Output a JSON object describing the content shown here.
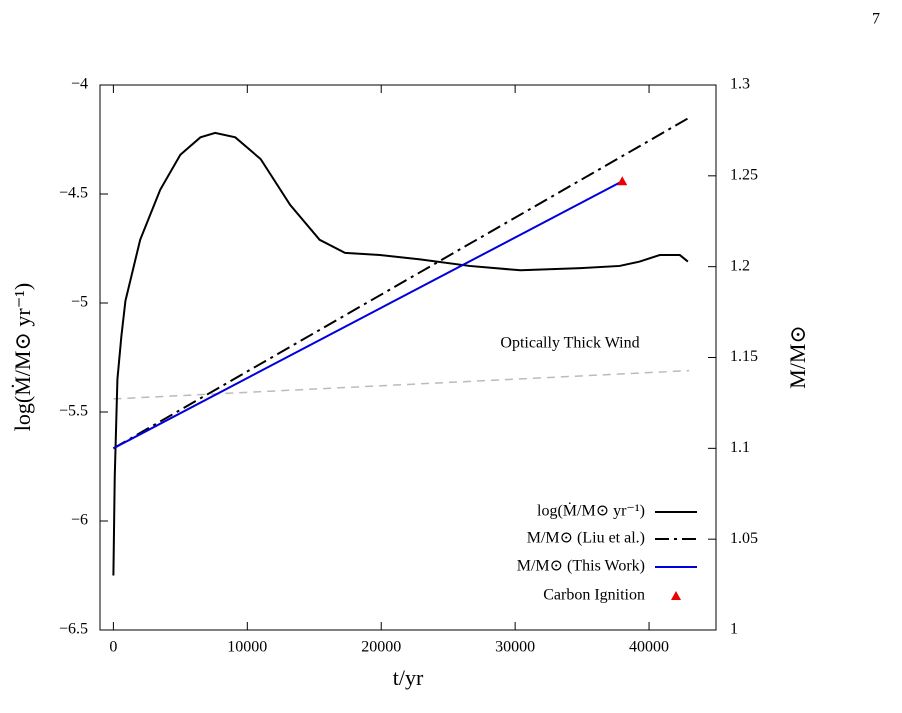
{
  "page_number": "7",
  "chart_data": {
    "type": "line",
    "xlabel": "t/yr",
    "ylabel": "log(Ṁ/M⊙ yr⁻¹)",
    "y2label": "M/M⊙",
    "xlim": [
      -1000,
      45000
    ],
    "xticks": [
      0,
      10000,
      20000,
      30000,
      40000
    ],
    "ylim": [
      -6.5,
      -4
    ],
    "yticks": [
      {
        "value": -4,
        "label": "−4"
      },
      {
        "value": -4.5,
        "label": "−4.5"
      },
      {
        "value": -5,
        "label": "−5"
      },
      {
        "value": -5.5,
        "label": "−5.5"
      },
      {
        "value": -6,
        "label": "−6"
      },
      {
        "value": -6.5,
        "label": "−6.5"
      }
    ],
    "y2lim": [
      1,
      1.3
    ],
    "y2ticks": [
      1,
      1.05,
      1.1,
      1.15,
      1.2,
      1.25,
      1.3
    ],
    "series": [
      {
        "name": "log(Ṁ/M⊙ yr⁻¹)",
        "color": "#000000",
        "style": "solid",
        "axis": "y",
        "x": [
          0,
          100,
          300,
          600,
          900,
          2000,
          3500,
          5000,
          6500,
          7600,
          9100,
          11000,
          13200,
          15400,
          17300,
          19900,
          22900,
          26600,
          30400,
          34900,
          37800,
          39300,
          40800,
          42300,
          42900
        ],
        "values": [
          -6.25,
          -5.8,
          -5.35,
          -5.15,
          -4.99,
          -4.71,
          -4.48,
          -4.32,
          -4.24,
          -4.22,
          -4.24,
          -4.34,
          -4.55,
          -4.71,
          -4.77,
          -4.78,
          -4.8,
          -4.83,
          -4.85,
          -4.84,
          -4.83,
          -4.81,
          -4.78,
          -4.78,
          -4.81
        ]
      },
      {
        "name": "M/M⊙ (Liu et al.)",
        "color": "#000000",
        "style": "dashdot",
        "axis": "y2",
        "x": [
          0,
          43000
        ],
        "values": [
          1.1,
          1.282
        ]
      },
      {
        "name": "M/M⊙ (This Work)",
        "color": "#0000dd",
        "style": "solid",
        "axis": "y2",
        "x": [
          0,
          38000
        ],
        "values": [
          1.1,
          1.247
        ]
      },
      {
        "name": "Carbon Ignition",
        "color": "#ee0000",
        "style": "marker",
        "axis": "y2",
        "x": [
          38000
        ],
        "values": [
          1.247
        ]
      }
    ],
    "reference_line": {
      "color": "#bbbbbb",
      "x": [
        0,
        43000
      ],
      "values": [
        -5.44,
        -5.31
      ]
    },
    "annotation": "Optically Thick Wind"
  }
}
